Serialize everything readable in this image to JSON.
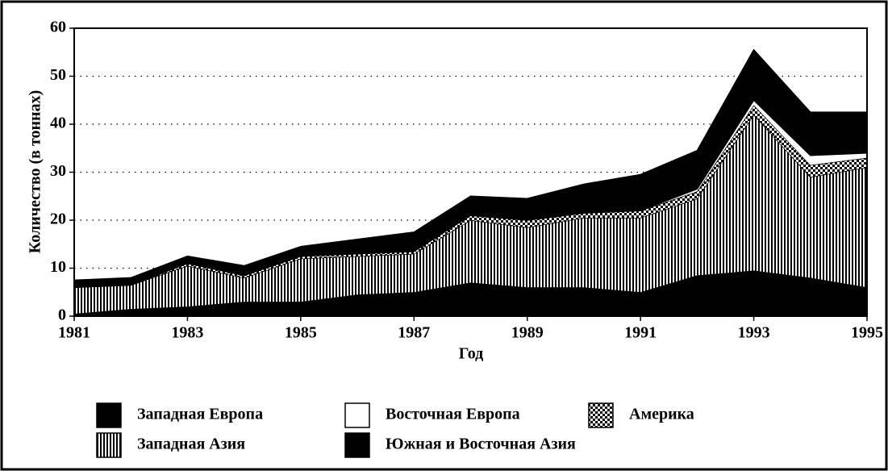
{
  "chart_data": {
    "type": "stacked-area",
    "x": [
      1981,
      1982,
      1983,
      1984,
      1985,
      1986,
      1987,
      1988,
      1989,
      1990,
      1991,
      1992,
      1993,
      1994,
      1995
    ],
    "xlim": [
      1981,
      1995
    ],
    "xticks": [
      1981,
      1983,
      1985,
      1987,
      1989,
      1991,
      1993,
      1995
    ],
    "ylim": [
      0,
      60
    ],
    "yticks": [
      0,
      10,
      20,
      30,
      40,
      50,
      60
    ],
    "xlabel": "Год",
    "ylabel": "Количество (в тоннах)",
    "grid": true,
    "series": [
      {
        "name": "Южная и Восточная Азия",
        "color": "#000000",
        "pattern": "solid",
        "values": [
          0.5,
          1.5,
          2,
          3,
          3,
          4.5,
          5,
          7,
          6,
          6,
          5,
          8.5,
          9.5,
          8,
          6
        ]
      },
      {
        "name": "Западная Азия",
        "color": "#000000",
        "pattern": "vertical-stripes",
        "values": [
          5.5,
          5,
          8.5,
          5,
          9,
          8,
          8,
          13,
          12.5,
          14.5,
          15.5,
          16,
          32.5,
          21,
          25
        ]
      },
      {
        "name": "Америка",
        "color": "#000000",
        "pattern": "checker",
        "values": [
          0,
          0,
          0.5,
          0.5,
          0.5,
          0.5,
          0.5,
          1,
          1.5,
          1,
          1.5,
          1.5,
          2,
          2.5,
          2
        ]
      },
      {
        "name": "Восточная Европа",
        "color": "#ffffff",
        "pattern": "solid",
        "values": [
          0,
          0,
          0,
          0,
          0,
          0,
          0,
          0,
          0,
          0,
          0,
          0.5,
          1,
          2,
          1
        ]
      },
      {
        "name": "Западная Европа",
        "color": "#000000",
        "pattern": "solid",
        "values": [
          1.5,
          1.5,
          1.5,
          2,
          2,
          3,
          4,
          4,
          4.5,
          6,
          7.5,
          8,
          10.5,
          9,
          8.5
        ]
      }
    ]
  }
}
